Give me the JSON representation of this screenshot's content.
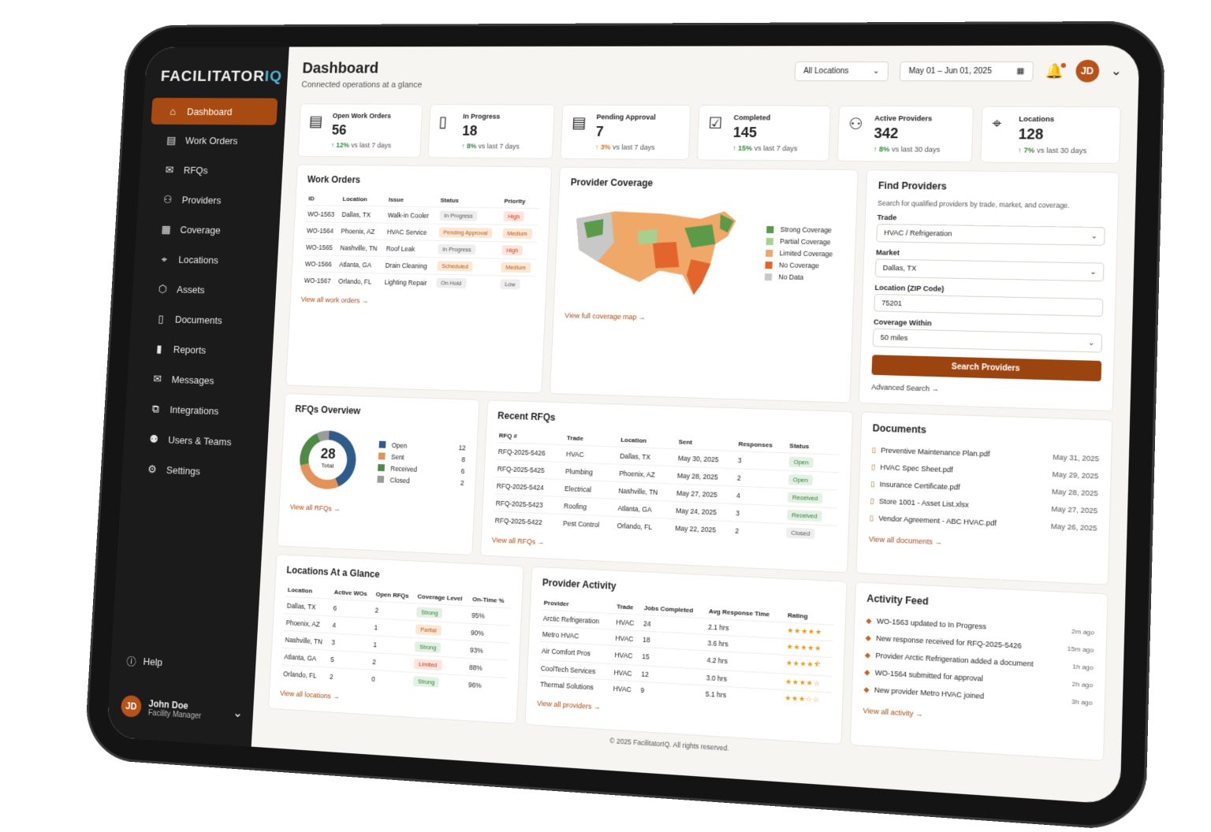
{
  "app": {
    "logo_main": "FACILITATOR",
    "logo_accent": "IQ"
  },
  "sidebar": {
    "items": [
      {
        "label": "Dashboard",
        "icon": "home-icon",
        "glyph": "⌂"
      },
      {
        "label": "Work Orders",
        "icon": "clipboard-icon",
        "glyph": "▤"
      },
      {
        "label": "RFQs",
        "icon": "mail-icon",
        "glyph": "✉"
      },
      {
        "label": "Providers",
        "icon": "handshake-icon",
        "glyph": "⚇"
      },
      {
        "label": "Coverage",
        "icon": "coverage-icon",
        "glyph": "▦"
      },
      {
        "label": "Locations",
        "icon": "pin-icon",
        "glyph": "⌖"
      },
      {
        "label": "Assets",
        "icon": "box-icon",
        "glyph": "⬡"
      },
      {
        "label": "Documents",
        "icon": "document-icon",
        "glyph": "▯"
      },
      {
        "label": "Reports",
        "icon": "bar-chart-icon",
        "glyph": "▮"
      },
      {
        "label": "Messages",
        "icon": "message-icon",
        "glyph": "✉"
      },
      {
        "label": "Integrations",
        "icon": "integration-icon",
        "glyph": "⧉"
      },
      {
        "label": "Users & Teams",
        "icon": "users-icon",
        "glyph": "⚉"
      },
      {
        "label": "Settings",
        "icon": "gear-icon",
        "glyph": "⚙"
      }
    ],
    "help": "Help",
    "user": {
      "initials": "JD",
      "name": "John Doe",
      "role": "Facility Manager"
    }
  },
  "header": {
    "title": "Dashboard",
    "subtitle": "Connected operations at a glance",
    "location_filter": "All Locations",
    "date_range": "May 01 – Jun 01, 2025",
    "avatar": "JD"
  },
  "kpis": [
    {
      "label": "Open Work Orders",
      "value": "56",
      "pct": "12%",
      "period": "vs last 7 days",
      "icon": "document-icon",
      "glyph": "▤",
      "tone": "g"
    },
    {
      "label": "In Progress",
      "value": "18",
      "pct": "8%",
      "period": "vs last 7 days",
      "icon": "file-icon",
      "glyph": "▯",
      "tone": "g"
    },
    {
      "label": "Pending Approval",
      "value": "7",
      "pct": "3%",
      "period": "vs last 7 days",
      "icon": "pending-icon",
      "glyph": "▤",
      "tone": "o"
    },
    {
      "label": "Completed",
      "value": "145",
      "pct": "15%",
      "period": "vs last 7 days",
      "icon": "check-icon",
      "glyph": "☑",
      "tone": "g"
    },
    {
      "label": "Active Providers",
      "value": "342",
      "pct": "8%",
      "period": "vs last 30 days",
      "icon": "users-icon",
      "glyph": "⚇",
      "tone": "g"
    },
    {
      "label": "Locations",
      "value": "128",
      "pct": "7%",
      "period": "vs last 30 days",
      "icon": "pin-icon",
      "glyph": "⌖",
      "tone": "g"
    }
  ],
  "work_orders": {
    "title": "Work Orders",
    "headers": [
      "ID",
      "Location",
      "Issue",
      "Status",
      "Priority"
    ],
    "rows": [
      {
        "id": "WO-1563",
        "location": "Dallas, TX",
        "issue": "Walk-in Cooler",
        "status": "In Progress",
        "status_tone": "gray",
        "priority": "High",
        "priority_tone": "red"
      },
      {
        "id": "WO-1564",
        "location": "Phoenix, AZ",
        "issue": "HVAC Service",
        "status": "Pending Approval",
        "status_tone": "orange",
        "priority": "Medium",
        "priority_tone": "orange"
      },
      {
        "id": "WO-1565",
        "location": "Nashville, TN",
        "issue": "Roof Leak",
        "status": "In Progress",
        "status_tone": "gray",
        "priority": "High",
        "priority_tone": "red"
      },
      {
        "id": "WO-1566",
        "location": "Atlanta, GA",
        "issue": "Drain Cleaning",
        "status": "Scheduled",
        "status_tone": "orange",
        "priority": "Medium",
        "priority_tone": "orange"
      },
      {
        "id": "WO-1567",
        "location": "Orlando, FL",
        "issue": "Lighting Repair",
        "status": "On Hold",
        "status_tone": "gray",
        "priority": "Low",
        "priority_tone": "gray"
      }
    ],
    "link": "View all work orders"
  },
  "coverage": {
    "title": "Provider Coverage",
    "legend": [
      {
        "label": "Strong Coverage",
        "color": "#5c9a4a"
      },
      {
        "label": "Partial Coverage",
        "color": "#a7cf8f"
      },
      {
        "label": "Limited Coverage",
        "color": "#f0a868"
      },
      {
        "label": "No Coverage",
        "color": "#e3642c"
      },
      {
        "label": "No Data",
        "color": "#c8c8c8"
      }
    ],
    "link": "View full coverage map"
  },
  "find_providers": {
    "title": "Find Providers",
    "subtitle": "Search for qualified providers by trade, market, and coverage.",
    "trade_label": "Trade",
    "trade_value": "HVAC / Refrigeration",
    "market_label": "Market",
    "market_value": "Dallas, TX",
    "zip_label": "Location (ZIP Code)",
    "zip_value": "75201",
    "radius_label": "Coverage Within",
    "radius_value": "50 miles",
    "button": "Search Providers",
    "advanced": "Advanced Search"
  },
  "rfq_overview": {
    "title": "RFQs Overview",
    "total": "28",
    "total_label": "Total",
    "items": [
      {
        "label": "Open",
        "value": 12,
        "color": "#2f5b8a"
      },
      {
        "label": "Sent",
        "value": 8,
        "color": "#e39259"
      },
      {
        "label": "Received",
        "value": 6,
        "color": "#4e8a45"
      },
      {
        "label": "Closed",
        "value": 2,
        "color": "#9b9b9b"
      }
    ],
    "link": "View all RFQs"
  },
  "recent_rfqs": {
    "title": "Recent RFQs",
    "headers": [
      "RFQ #",
      "Trade",
      "Location",
      "Sent",
      "Responses",
      "Status"
    ],
    "rows": [
      {
        "id": "RFQ-2025-5426",
        "trade": "HVAC",
        "location": "Dallas, TX",
        "sent": "May 30, 2025",
        "responses": "3",
        "status": "Open",
        "tone": "green"
      },
      {
        "id": "RFQ-2025-5425",
        "trade": "Plumbing",
        "location": "Phoenix, AZ",
        "sent": "May 28, 2025",
        "responses": "2",
        "status": "Open",
        "tone": "green"
      },
      {
        "id": "RFQ-2025-5424",
        "trade": "Electrical",
        "location": "Nashville, TN",
        "sent": "May 27, 2025",
        "responses": "4",
        "status": "Received",
        "tone": "green"
      },
      {
        "id": "RFQ-2025-5423",
        "trade": "Roofing",
        "location": "Atlanta, GA",
        "sent": "May 24, 2025",
        "responses": "3",
        "status": "Received",
        "tone": "green"
      },
      {
        "id": "RFQ-2025-5422",
        "trade": "Pest Control",
        "location": "Orlando, FL",
        "sent": "May 22, 2025",
        "responses": "2",
        "status": "Closed",
        "tone": "gray"
      }
    ],
    "link": "View all RFQs"
  },
  "documents": {
    "title": "Documents",
    "items": [
      {
        "name": "Preventive Maintenance Plan.pdf",
        "date": "May 31, 2025"
      },
      {
        "name": "HVAC Spec Sheet.pdf",
        "date": "May 29, 2025"
      },
      {
        "name": "Insurance Certificate.pdf",
        "date": "May 28, 2025"
      },
      {
        "name": "Store 1001 - Asset List.xlsx",
        "date": "May 27, 2025"
      },
      {
        "name": "Vendor Agreement - ABC HVAC.pdf",
        "date": "May 26, 2025"
      }
    ],
    "link": "View all documents"
  },
  "locations_glance": {
    "title": "Locations At a Glance",
    "headers": [
      "Location",
      "Active WOs",
      "Open RFQs",
      "Coverage Level",
      "On-Time %"
    ],
    "rows": [
      {
        "location": "Dallas, TX",
        "wos": "6",
        "rfqs": "2",
        "coverage": "Strong",
        "tone": "green",
        "ontime": "95%"
      },
      {
        "location": "Phoenix, AZ",
        "wos": "4",
        "rfqs": "1",
        "coverage": "Partial",
        "tone": "orange",
        "ontime": "90%"
      },
      {
        "location": "Nashville, TN",
        "wos": "3",
        "rfqs": "1",
        "coverage": "Strong",
        "tone": "green",
        "ontime": "93%"
      },
      {
        "location": "Atlanta, GA",
        "wos": "5",
        "rfqs": "2",
        "coverage": "Limited",
        "tone": "red",
        "ontime": "88%"
      },
      {
        "location": "Orlando, FL",
        "wos": "2",
        "rfqs": "0",
        "coverage": "Strong",
        "tone": "green",
        "ontime": "96%"
      }
    ],
    "link": "View all locations"
  },
  "provider_activity": {
    "title": "Provider Activity",
    "headers": [
      "Provider",
      "Trade",
      "Jobs Completed",
      "Avg Response Time",
      "Rating"
    ],
    "rows": [
      {
        "provider": "Arctic Refrigeration",
        "trade": "HVAC",
        "jobs": "24",
        "response": "2.1 hrs",
        "rating": 5
      },
      {
        "provider": "Metro HVAC",
        "trade": "HVAC",
        "jobs": "18",
        "response": "3.6 hrs",
        "rating": 5
      },
      {
        "provider": "Air Comfort Pros",
        "trade": "HVAC",
        "jobs": "15",
        "response": "4.2 hrs",
        "rating": 4.5
      },
      {
        "provider": "CoolTech Services",
        "trade": "HVAC",
        "jobs": "12",
        "response": "3.0 hrs",
        "rating": 4
      },
      {
        "provider": "Thermal Solutions",
        "trade": "HVAC",
        "jobs": "9",
        "response": "5.1 hrs",
        "rating": 3
      }
    ],
    "link": "View all providers"
  },
  "activity_feed": {
    "title": "Activity Feed",
    "items": [
      {
        "text": "WO-1563 updated to In Progress",
        "time": "2m ago"
      },
      {
        "text": "New response received for RFQ-2025-5426",
        "time": "15m ago"
      },
      {
        "text": "Provider Arctic Refrigeration added a document",
        "time": "1h ago"
      },
      {
        "text": "WO-1564 submitted for approval",
        "time": "2h ago"
      },
      {
        "text": "New provider Metro HVAC joined",
        "time": "3h ago"
      }
    ],
    "link": "View all activity"
  },
  "footer": "© 2025 FacilitatorIQ. All rights reserved."
}
